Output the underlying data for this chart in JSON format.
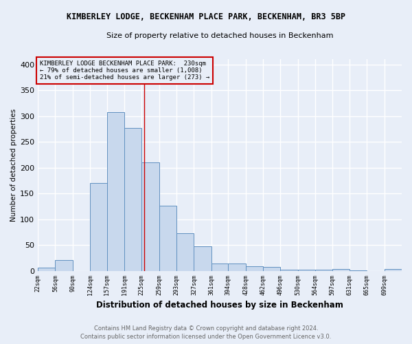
{
  "title": "KIMBERLEY LODGE, BECKENHAM PLACE PARK, BECKENHAM, BR3 5BP",
  "subtitle": "Size of property relative to detached houses in Beckenham",
  "xlabel": "Distribution of detached houses by size in Beckenham",
  "ylabel": "Number of detached properties",
  "bin_labels": [
    "22sqm",
    "56sqm",
    "90sqm",
    "124sqm",
    "157sqm",
    "191sqm",
    "225sqm",
    "259sqm",
    "293sqm",
    "327sqm",
    "361sqm",
    "394sqm",
    "428sqm",
    "462sqm",
    "496sqm",
    "530sqm",
    "564sqm",
    "597sqm",
    "631sqm",
    "665sqm",
    "699sqm"
  ],
  "bin_edges": [
    22,
    56,
    90,
    124,
    157,
    191,
    225,
    259,
    293,
    327,
    361,
    394,
    428,
    462,
    496,
    530,
    564,
    597,
    631,
    665,
    699
  ],
  "bar_heights": [
    6,
    21,
    0,
    170,
    307,
    277,
    210,
    126,
    73,
    48,
    14,
    14,
    9,
    8,
    3,
    2,
    2,
    4,
    1,
    0,
    4
  ],
  "bar_color": "#c8d8ed",
  "bar_edge_color": "#6090c0",
  "red_line_x": 230,
  "annotation_title": "KIMBERLEY LODGE BECKENHAM PLACE PARK:  230sqm",
  "annotation_line2": "← 79% of detached houses are smaller (1,008)",
  "annotation_line3": "21% of semi-detached houses are larger (273) →",
  "footer_line1": "Contains HM Land Registry data © Crown copyright and database right 2024.",
  "footer_line2": "Contains public sector information licensed under the Open Government Licence v3.0.",
  "ylim": [
    0,
    410
  ],
  "yticks": [
    0,
    50,
    100,
    150,
    200,
    250,
    300,
    350,
    400
  ],
  "background_color": "#e8eef8",
  "grid_color": "#ffffff"
}
